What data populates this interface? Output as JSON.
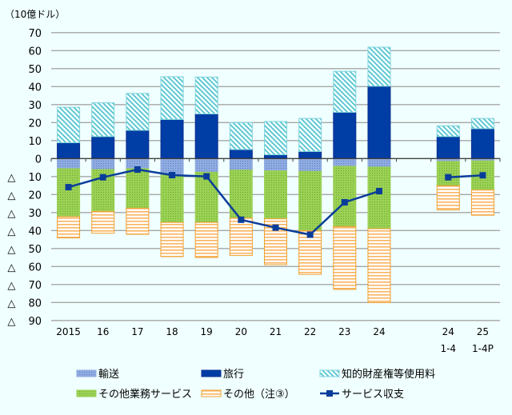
{
  "chart_data": {
    "type": "bar",
    "stacked": true,
    "unit_label": "（10億ドル）",
    "categories": [
      [
        "2015"
      ],
      [
        "16"
      ],
      [
        "17"
      ],
      [
        "18"
      ],
      [
        "19"
      ],
      [
        "20"
      ],
      [
        "21"
      ],
      [
        "22"
      ],
      [
        "23"
      ],
      [
        "24"
      ],
      [
        "24",
        "1-4"
      ],
      [
        "25",
        "1-4P"
      ]
    ],
    "ylim": [
      -90,
      70
    ],
    "yticks": [
      70,
      60,
      50,
      40,
      30,
      20,
      10,
      0,
      -10,
      -20,
      -30,
      -40,
      -50,
      -60,
      -70,
      -80,
      -90
    ],
    "ytick_labels": [
      "70",
      "60",
      "50",
      "40",
      "30",
      "20",
      "10",
      "0",
      "△ 10",
      "△ 20",
      "△ 30",
      "△ 40",
      "△ 50",
      "△ 60",
      "△ 70",
      "△ 80",
      "△ 90"
    ],
    "grid": true,
    "legend_position": "bottom",
    "series": [
      {
        "name": "輸送",
        "kind": "bar",
        "color": "#7f9fdc",
        "pattern": "dots",
        "values": [
          -5.6,
          -6.1,
          -5.6,
          -9.2,
          -7.6,
          -6.4,
          -6.8,
          -7.1,
          -4.3,
          -4.7,
          -1.6,
          -1.3
        ]
      },
      {
        "name": "旅行",
        "kind": "bar",
        "color": "#003da5",
        "pattern": "solid",
        "values": [
          8.8,
          12.2,
          15.7,
          21.7,
          24.8,
          5.0,
          2.1,
          3.9,
          25.7,
          40.2,
          12.2,
          16.6
        ]
      },
      {
        "name": "知的財産権等使用料",
        "kind": "bar",
        "color": "#4bbfcc",
        "pattern": "diagonal",
        "values": [
          19.7,
          18.8,
          20.5,
          23.8,
          20.5,
          15.0,
          18.5,
          18.4,
          22.8,
          21.7,
          6.0,
          5.7
        ]
      },
      {
        "name": "その他業務サービス",
        "kind": "bar",
        "color": "#8cc63f",
        "pattern": "dots",
        "values": [
          -26.7,
          -23.3,
          -22.0,
          -26.3,
          -27.9,
          -26.7,
          -26.7,
          -33.0,
          -33.5,
          -34.3,
          -13.5,
          -16.2
        ]
      },
      {
        "name": "その他（注③）",
        "kind": "bar",
        "color": "#f7a030",
        "pattern": "horizontal",
        "values": [
          -11.8,
          -12.1,
          -14.5,
          -19.0,
          -19.5,
          -20.8,
          -25.5,
          -24.3,
          -34.9,
          -41.1,
          -13.4,
          -14.0
        ]
      },
      {
        "name": "サービス収支",
        "kind": "line",
        "color": "#0a3d9a",
        "values": [
          -15.9,
          -10.4,
          -6.1,
          -9.2,
          -9.9,
          -34.0,
          -38.4,
          -42.3,
          -24.3,
          -18.1,
          -10.4,
          -9.3
        ]
      }
    ]
  }
}
